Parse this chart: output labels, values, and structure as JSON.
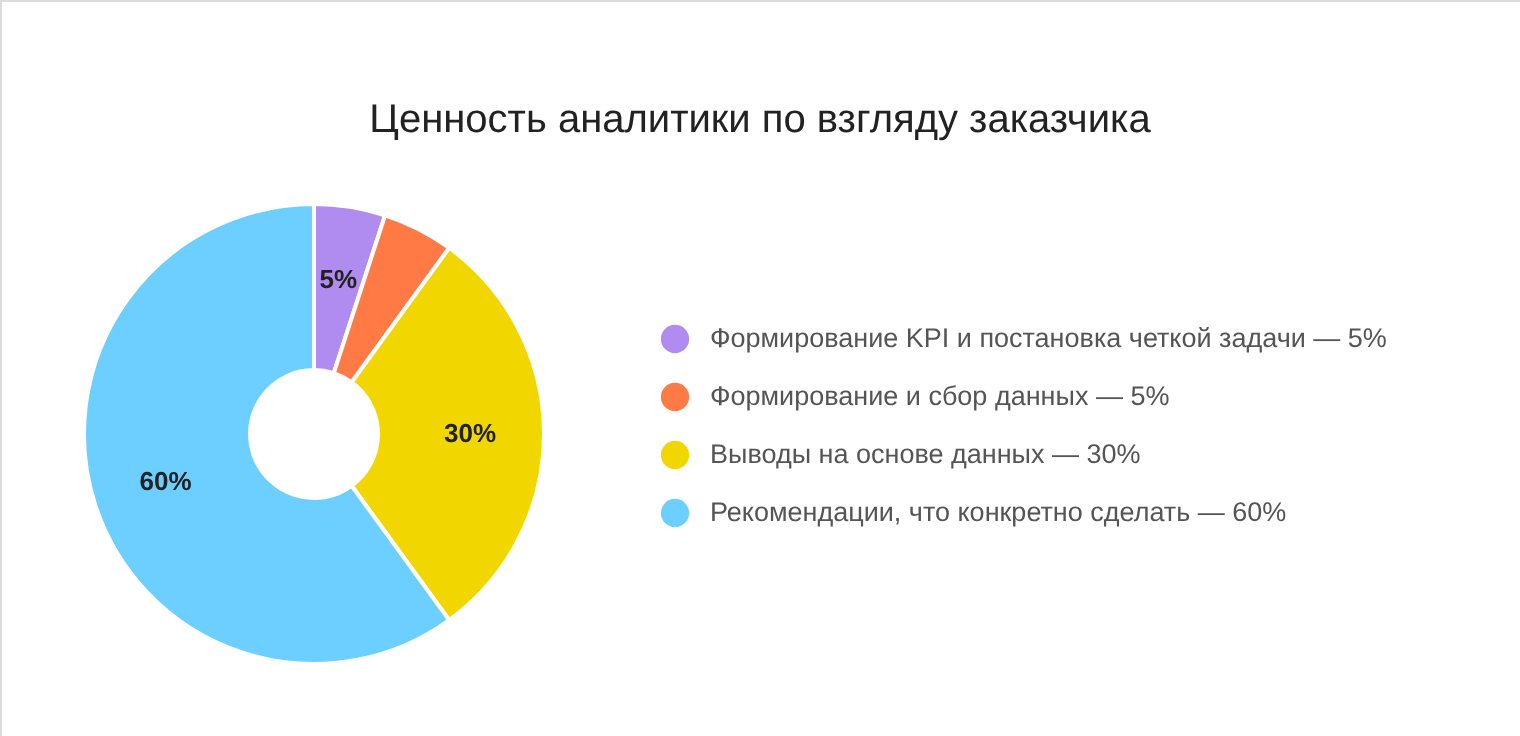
{
  "chart_data": {
    "type": "donut",
    "title": "Ценность аналитики по взгляду заказчика",
    "categories": [
      "Формирование KPI и постановка четкой задачи — 5%",
      "Формирование и сбор данных — 5%",
      "Выводы на основе данных  — 30%",
      "Рекомендации, что конкретно сделать — 60%"
    ],
    "values": [
      5,
      5,
      30,
      60
    ],
    "colors": [
      "#b18cf0",
      "#ff7a45",
      "#f2d600",
      "#6ccfff"
    ],
    "value_labels": [
      "5%",
      null,
      "30%",
      "60%"
    ],
    "legend": "right"
  }
}
